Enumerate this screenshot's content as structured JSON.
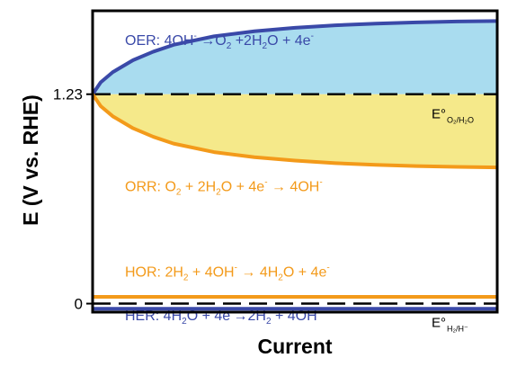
{
  "chart_data": {
    "type": "line",
    "title": "",
    "xlabel": "Current",
    "ylabel": "E (V vs. RHE)",
    "y_ticks": [
      {
        "value": 0,
        "label": "0"
      },
      {
        "value": 1.23,
        "label": "1.23"
      }
    ],
    "ylim": [
      -0.05,
      1.72
    ],
    "xlim": [
      0,
      1
    ],
    "grid": false,
    "legend": "none",
    "reference_lines": [
      {
        "id": "oer-orr-equilibrium",
        "y": 1.23,
        "style": "dashed",
        "color": "#000000",
        "label_main": "E°",
        "label_sub": "O₂/H₂O"
      },
      {
        "id": "hor-her-equilibrium",
        "y": 0.0,
        "style": "dashed",
        "color": "#000000",
        "label_main": "E°",
        "label_sub": "H₂/H⁻"
      }
    ],
    "series": [
      {
        "id": "oer",
        "color": "#3a49a8",
        "fill": "#a9dcef",
        "x": [
          0,
          0.02,
          0.05,
          0.1,
          0.15,
          0.2,
          0.3,
          0.4,
          0.5,
          0.6,
          0.7,
          0.8,
          0.9,
          1.0
        ],
        "y": [
          1.23,
          1.3,
          1.36,
          1.43,
          1.48,
          1.52,
          1.57,
          1.6,
          1.62,
          1.635,
          1.645,
          1.652,
          1.657,
          1.66
        ]
      },
      {
        "id": "orr",
        "color": "#f39a1a",
        "fill": "#f5e98a",
        "x": [
          0,
          0.02,
          0.05,
          0.1,
          0.15,
          0.2,
          0.3,
          0.4,
          0.5,
          0.6,
          0.7,
          0.8,
          0.9,
          1.0
        ],
        "y": [
          1.23,
          1.16,
          1.1,
          1.03,
          0.98,
          0.94,
          0.89,
          0.86,
          0.84,
          0.825,
          0.815,
          0.808,
          0.803,
          0.8
        ]
      },
      {
        "id": "hor",
        "color": "#f39a1a",
        "x": [
          0,
          1.0
        ],
        "y": [
          0.04,
          0.04
        ]
      },
      {
        "id": "her",
        "color": "#3a49a8",
        "x": [
          0,
          1.0
        ],
        "y": [
          -0.03,
          -0.03
        ]
      }
    ],
    "annotations": [
      {
        "id": "oer-equation",
        "series": "oer",
        "color": "#3a49a8",
        "x": 0.08,
        "y": 1.52,
        "parts": [
          {
            "t": "OER: 4OH"
          },
          {
            "t": "-",
            "sup": true
          },
          {
            "t": " →O"
          },
          {
            "t": "2",
            "sub": true
          },
          {
            "t": " +2H"
          },
          {
            "t": "2",
            "sub": true
          },
          {
            "t": "O + 4e"
          },
          {
            "t": "-",
            "sup": true
          }
        ]
      },
      {
        "id": "orr-equation",
        "series": "orr",
        "color": "#f39a1a",
        "x": 0.08,
        "y": 0.66,
        "parts": [
          {
            "t": "ORR: O"
          },
          {
            "t": "2",
            "sub": true
          },
          {
            "t": " + 2H"
          },
          {
            "t": "2",
            "sub": true
          },
          {
            "t": "O + 4e"
          },
          {
            "t": "-",
            "sup": true
          },
          {
            "t": " → 4OH"
          },
          {
            "t": "-",
            "sup": true
          }
        ]
      },
      {
        "id": "hor-equation",
        "series": "hor",
        "color": "#f39a1a",
        "x": 0.08,
        "y": 0.16,
        "parts": [
          {
            "t": "HOR: 2H"
          },
          {
            "t": "2",
            "sub": true
          },
          {
            "t": " + 4OH"
          },
          {
            "t": "-",
            "sup": true
          },
          {
            "t": " → 4H"
          },
          {
            "t": "2",
            "sub": true
          },
          {
            "t": "O + 4e"
          },
          {
            "t": "-",
            "sup": true
          }
        ]
      },
      {
        "id": "her-equation",
        "series": "her",
        "color": "#3a49a8",
        "x": 0.08,
        "y": 0.09,
        "parts": [
          {
            "t": "HER: 4H"
          },
          {
            "t": "2",
            "sub": true
          },
          {
            "t": "O + 4e"
          },
          {
            "t": "-",
            "sup": true
          },
          {
            "t": "→2H"
          },
          {
            "t": "2",
            "sub": true
          },
          {
            "t": " + 4OH"
          },
          {
            "t": "-",
            "sup": true
          }
        ]
      }
    ]
  }
}
